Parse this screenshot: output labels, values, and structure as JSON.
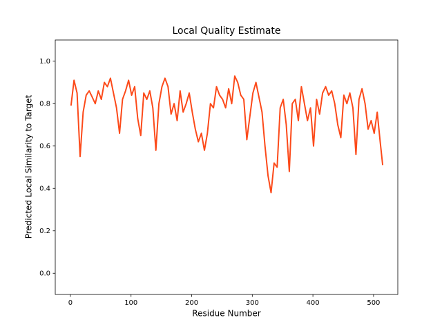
{
  "chart_data": {
    "type": "line",
    "title": "Local Quality Estimate",
    "x_label": "Residue Number",
    "y_label": "Predicted Local Similarity to Target",
    "x": [
      1,
      6,
      11,
      16,
      21,
      26,
      31,
      36,
      41,
      46,
      51,
      56,
      61,
      66,
      71,
      76,
      81,
      86,
      91,
      96,
      101,
      106,
      111,
      116,
      121,
      126,
      131,
      136,
      141,
      146,
      151,
      156,
      161,
      166,
      171,
      176,
      181,
      186,
      191,
      196,
      201,
      206,
      211,
      216,
      221,
      226,
      231,
      236,
      241,
      246,
      251,
      256,
      261,
      266,
      271,
      276,
      281,
      286,
      291,
      296,
      301,
      306,
      311,
      316,
      321,
      326,
      331,
      336,
      341,
      346,
      351,
      356,
      361,
      366,
      371,
      376,
      381,
      386,
      391,
      396,
      401,
      406,
      411,
      416,
      421,
      426,
      431,
      436,
      441,
      446,
      451,
      456,
      461,
      466,
      471,
      476,
      481,
      486,
      491,
      496,
      501,
      506,
      511,
      515
    ],
    "series": [
      {
        "color": "#fc4a1a",
        "values": [
          0.79,
          0.91,
          0.85,
          0.55,
          0.76,
          0.84,
          0.86,
          0.83,
          0.8,
          0.86,
          0.82,
          0.9,
          0.88,
          0.92,
          0.85,
          0.78,
          0.66,
          0.82,
          0.86,
          0.91,
          0.84,
          0.88,
          0.73,
          0.65,
          0.85,
          0.82,
          0.86,
          0.78,
          0.58,
          0.8,
          0.88,
          0.92,
          0.88,
          0.75,
          0.8,
          0.72,
          0.86,
          0.76,
          0.8,
          0.85,
          0.76,
          0.68,
          0.62,
          0.66,
          0.58,
          0.66,
          0.8,
          0.78,
          0.88,
          0.84,
          0.82,
          0.78,
          0.87,
          0.8,
          0.93,
          0.9,
          0.84,
          0.82,
          0.63,
          0.74,
          0.85,
          0.9,
          0.83,
          0.76,
          0.6,
          0.46,
          0.38,
          0.52,
          0.5,
          0.78,
          0.82,
          0.7,
          0.48,
          0.8,
          0.82,
          0.72,
          0.88,
          0.8,
          0.72,
          0.78,
          0.6,
          0.82,
          0.75,
          0.85,
          0.88,
          0.84,
          0.86,
          0.8,
          0.7,
          0.64,
          0.84,
          0.8,
          0.85,
          0.78,
          0.56,
          0.82,
          0.87,
          0.8,
          0.68,
          0.72,
          0.66,
          0.76,
          0.62,
          0.51
        ]
      }
    ],
    "xlim": [
      -25,
      540
    ],
    "ylim": [
      -0.1,
      1.1
    ],
    "xticks": [
      0,
      100,
      200,
      300,
      400,
      500
    ],
    "yticks": [
      {
        "value": 0,
        "label": "0.0"
      },
      0.2,
      0.4,
      0.6,
      0.8,
      {
        "value": 1,
        "label": "1.0"
      }
    ]
  }
}
